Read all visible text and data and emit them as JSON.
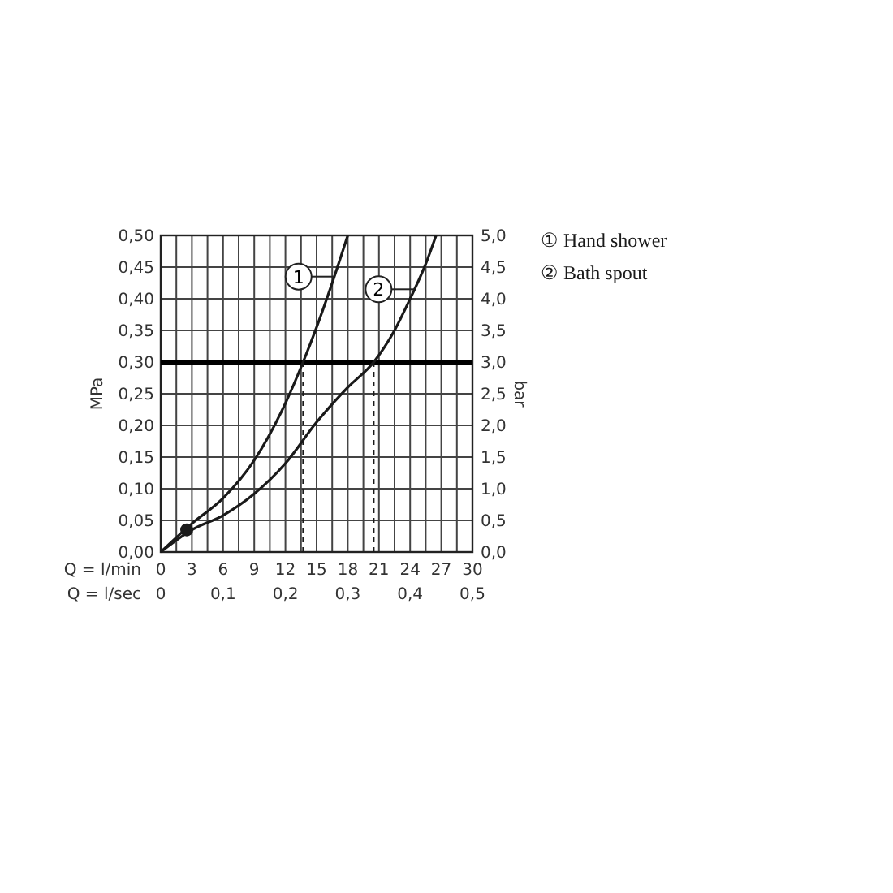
{
  "chart_data": {
    "type": "line",
    "xlabel": "Q = l/min",
    "x2label": "Q = l/sec",
    "ylabel": "MPa",
    "y2label": "bar",
    "xlim": [
      0,
      30
    ],
    "xticks": [
      0,
      {
        "value": 1.5,
        "label": null
      },
      3,
      {
        "value": 4.5,
        "label": null
      },
      6,
      {
        "value": 7.5,
        "label": null
      },
      9,
      {
        "value": 10.5,
        "label": null
      },
      12,
      {
        "value": 13.5,
        "label": null
      },
      15,
      {
        "value": 16.5,
        "label": null
      },
      18,
      {
        "value": 19.5,
        "label": null
      },
      21,
      {
        "value": 22.5,
        "label": null
      },
      24,
      {
        "value": 25.5,
        "label": null
      },
      27,
      {
        "value": 28.5,
        "label": null
      },
      30
    ],
    "x2lim": [
      0,
      0.5
    ],
    "x2ticks": [
      0,
      {
        "value": 0.1,
        "label": "0,1"
      },
      {
        "value": 0.2,
        "label": "0,2"
      },
      {
        "value": 0.3,
        "label": "0,3"
      },
      {
        "value": 0.4,
        "label": "0,4"
      },
      {
        "value": 0.5,
        "label": "0,5"
      }
    ],
    "ylim": [
      0,
      0.5
    ],
    "yticks": [
      {
        "value": 0,
        "label": "0,00"
      },
      {
        "value": 0.05,
        "label": "0,05"
      },
      {
        "value": 0.1,
        "label": "0,10"
      },
      {
        "value": 0.15,
        "label": "0,15"
      },
      {
        "value": 0.2,
        "label": "0,20"
      },
      {
        "value": 0.25,
        "label": "0,25"
      },
      {
        "value": 0.3,
        "label": "0,30"
      },
      {
        "value": 0.35,
        "label": "0,35"
      },
      {
        "value": 0.4,
        "label": "0,40"
      },
      {
        "value": 0.45,
        "label": "0,45"
      },
      {
        "value": 0.5,
        "label": "0,50"
      }
    ],
    "y2lim": [
      0,
      5
    ],
    "y2ticks": [
      {
        "value": 0,
        "label": "0,0"
      },
      {
        "value": 0.5,
        "label": "0,5"
      },
      {
        "value": 1,
        "label": "1,0"
      },
      {
        "value": 1.5,
        "label": "1,5"
      },
      {
        "value": 2,
        "label": "2,0"
      },
      {
        "value": 2.5,
        "label": "2,5"
      },
      {
        "value": 3,
        "label": "3,0"
      },
      {
        "value": 3.5,
        "label": "3,5"
      },
      {
        "value": 4,
        "label": "4,0"
      },
      {
        "value": 4.5,
        "label": "4,5"
      },
      {
        "value": 5,
        "label": "5,0"
      }
    ],
    "grid": true,
    "legend": "right",
    "marker": "none",
    "series": [
      {
        "name": "① Hand shower",
        "color": "#1a1a1a",
        "x": [
          0,
          3,
          6,
          9,
          12,
          13.7,
          15,
          16.5,
          18
        ],
        "values": [
          0,
          0.045,
          0.085,
          0.145,
          0.235,
          0.3,
          0.355,
          0.425,
          0.5
        ]
      },
      {
        "name": "② Bath spout",
        "color": "#1a1a1a",
        "x": [
          0,
          3,
          6,
          9,
          12,
          15,
          18,
          20.5,
          22.5,
          24,
          25.5,
          26.5
        ],
        "values": [
          0,
          0.035,
          0.058,
          0.092,
          0.14,
          0.205,
          0.26,
          0.3,
          0.35,
          0.4,
          0.455,
          0.5
        ]
      },
      {
        "type": "line",
        "line_style": "dashed",
        "color": "#1a1a1a",
        "x": [
          13.7,
          13.7
        ],
        "values": [
          0,
          0.3
        ]
      },
      {
        "type": "line",
        "line_style": "dashed",
        "color": "#1a1a1a",
        "x": [
          20.5,
          20.5
        ],
        "values": [
          0,
          0.3
        ]
      },
      {
        "type": "scatter",
        "marker": "circle",
        "color": "#1a1a1a",
        "x": [
          2.5
        ],
        "values": [
          0.035
        ]
      }
    ],
    "ref_lines": [
      {
        "axis": "y",
        "value": 0.3,
        "color": "#000000"
      }
    ],
    "annotations": [
      {
        "text": "1",
        "x": 16.7,
        "y": 0.435
      },
      {
        "text": "2",
        "x": 24.4,
        "y": 0.415
      }
    ]
  }
}
